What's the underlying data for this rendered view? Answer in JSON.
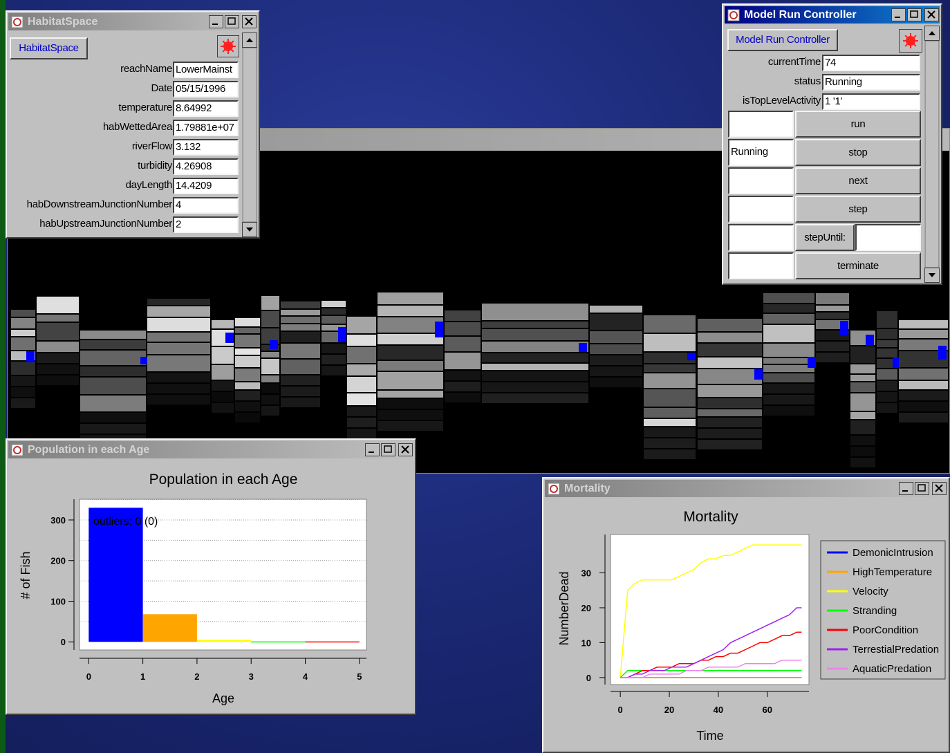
{
  "habitat_window": {
    "title": "HabitatSpace",
    "button": "HabitatSpace",
    "fields": [
      {
        "label": "reachName",
        "value": "LowerMainst"
      },
      {
        "label": "Date",
        "value": "05/15/1996"
      },
      {
        "label": "temperature",
        "value": "8.64992"
      },
      {
        "label": "habWettedArea",
        "value": "1.79881e+07"
      },
      {
        "label": "riverFlow",
        "value": "3.132"
      },
      {
        "label": "turbidity",
        "value": "4.26908"
      },
      {
        "label": "dayLength",
        "value": "14.4209"
      },
      {
        "label": "habDownstreamJunctionNumber",
        "value": "4"
      },
      {
        "label": "habUpstreamJunctionNumber",
        "value": "2"
      }
    ]
  },
  "controller_window": {
    "title": "Model Run Controller",
    "button": "Model Run Controller",
    "fields": [
      {
        "label": "currentTime",
        "value": "74"
      },
      {
        "label": "status",
        "value": "Running"
      },
      {
        "label": "isTopLevelActivity",
        "value": "1 '1'"
      }
    ],
    "actions": [
      {
        "button": "run"
      },
      {
        "status": "Running",
        "button": "stop"
      },
      {
        "button": "next"
      },
      {
        "button": "step"
      },
      {
        "button": "stepUntil:"
      },
      {
        "button": "terminate"
      }
    ]
  },
  "population_window": {
    "title": "Population in each Age"
  },
  "mortality_window": {
    "title": "Mortality"
  },
  "chart_data": [
    {
      "type": "histogram",
      "title": "Population in each Age",
      "xlabel": "Age",
      "ylabel": "# of Fish",
      "annotation": "outliers: 0 (0)",
      "bins": [
        0,
        1,
        2,
        3,
        4,
        5
      ],
      "values": [
        330,
        68,
        5,
        1,
        1
      ],
      "colors": [
        "#0000ff",
        "#ffa500",
        "#ffff00",
        "#00ff00",
        "#ff0000"
      ],
      "xlim": [
        -0.17,
        5.13
      ],
      "ylim": [
        -20,
        351
      ],
      "xticks": [
        0,
        1,
        2,
        3,
        4,
        5
      ],
      "yticks": [
        0,
        100,
        200,
        300
      ],
      "grid": true,
      "ygrid": [
        50,
        100,
        150,
        200,
        250,
        300,
        350
      ]
    },
    {
      "type": "line",
      "title": "Mortality",
      "xlabel": "Time",
      "ylabel": "NumberDead",
      "legend": "right",
      "x": [
        0,
        3,
        6,
        9,
        12,
        15,
        18,
        21,
        24,
        27,
        30,
        33,
        36,
        39,
        42,
        45,
        48,
        51,
        54,
        57,
        60,
        63,
        66,
        69,
        72,
        74
      ],
      "series": [
        {
          "name": "DemonicIntrusion",
          "color": "#0000ff",
          "values": [
            0,
            0,
            0,
            0,
            0,
            0,
            0,
            0,
            0,
            0,
            0,
            0,
            0,
            0,
            0,
            0,
            0,
            0,
            0,
            0,
            0,
            0,
            0,
            0,
            0,
            0
          ]
        },
        {
          "name": "HighTemperature",
          "color": "#ffa500",
          "values": [
            0,
            0,
            0,
            0,
            0,
            0,
            0,
            0,
            0,
            0,
            0,
            0,
            0,
            0,
            0,
            0,
            0,
            0,
            0,
            0,
            0,
            0,
            0,
            0,
            0,
            0
          ]
        },
        {
          "name": "Velocity",
          "color": "#ffff00",
          "values": [
            0,
            25,
            27,
            28,
            28,
            28,
            28,
            28,
            29,
            30,
            31,
            33,
            34,
            34,
            35,
            35,
            36,
            37,
            38,
            38,
            38,
            38,
            38,
            38,
            38,
            38
          ]
        },
        {
          "name": "Stranding",
          "color": "#00ff00",
          "values": [
            0,
            2,
            2,
            2,
            2,
            2,
            2,
            2,
            2,
            2,
            2,
            2,
            2,
            2,
            2,
            2,
            2,
            2,
            2,
            2,
            2,
            2,
            2,
            2,
            2,
            2
          ]
        },
        {
          "name": "PoorCondition",
          "color": "#ff0000",
          "values": [
            0,
            0,
            1,
            2,
            2,
            3,
            3,
            3,
            4,
            4,
            4,
            5,
            5,
            6,
            6,
            7,
            7,
            8,
            9,
            10,
            10,
            11,
            12,
            12,
            13,
            13
          ]
        },
        {
          "name": "TerrestialPredation",
          "color": "#a020f0",
          "values": [
            0,
            0,
            1,
            1,
            2,
            2,
            2,
            3,
            3,
            3,
            4,
            5,
            6,
            7,
            8,
            10,
            11,
            12,
            13,
            14,
            15,
            16,
            17,
            18,
            20,
            20
          ]
        },
        {
          "name": "AquaticPredation",
          "color": "#ee82ee",
          "values": [
            0,
            0,
            0,
            0,
            1,
            1,
            1,
            1,
            1,
            2,
            2,
            2,
            3,
            3,
            3,
            3,
            3,
            4,
            4,
            4,
            4,
            4,
            5,
            5,
            5,
            5
          ]
        }
      ],
      "xlim": [
        -4,
        77
      ],
      "ylim": [
        -2,
        41
      ],
      "xticks": [
        0,
        20,
        40,
        60
      ],
      "yticks": [
        0,
        10,
        20,
        30
      ]
    }
  ]
}
